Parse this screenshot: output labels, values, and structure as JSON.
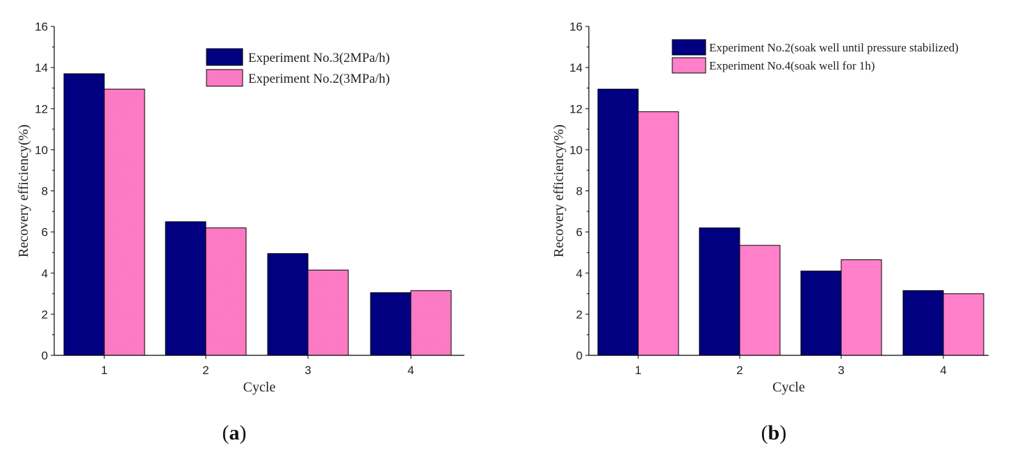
{
  "chart_data": [
    {
      "type": "bar",
      "panel_label": "a",
      "xlabel": "Cycle",
      "ylabel": "Recovery efficiency(%)",
      "categories": [
        "1",
        "2",
        "3",
        "4"
      ],
      "ylim": [
        0,
        16
      ],
      "yticks": [
        "0",
        "2",
        "4",
        "6",
        "8",
        "10",
        "12",
        "14",
        "16"
      ],
      "legend_position": "top-right",
      "series": [
        {
          "name": "Experiment No.3(2MPa/h)",
          "values": [
            13.7,
            6.5,
            4.95,
            3.05
          ],
          "color": "#000080"
        },
        {
          "name": "Experiment No.2(3MPa/h)",
          "values": [
            12.95,
            6.2,
            4.15,
            3.15
          ],
          "color": "#ff7fc8"
        }
      ]
    },
    {
      "type": "bar",
      "panel_label": "b",
      "xlabel": "Cycle",
      "ylabel": "Recovery efficiency(%)",
      "categories": [
        "1",
        "2",
        "3",
        "4"
      ],
      "ylim": [
        0,
        16
      ],
      "yticks": [
        "0",
        "2",
        "4",
        "6",
        "8",
        "10",
        "12",
        "14",
        "16"
      ],
      "legend_position": "top-right",
      "series": [
        {
          "name": "Experiment No.2(soak well until pressure stabilized)",
          "values": [
            12.95,
            6.2,
            4.1,
            3.15
          ],
          "color": "#000080"
        },
        {
          "name": "Experiment No.4(soak well for 1h)",
          "values": [
            11.85,
            5.35,
            4.65,
            3.0
          ],
          "color": "#ff80c8"
        }
      ]
    }
  ]
}
